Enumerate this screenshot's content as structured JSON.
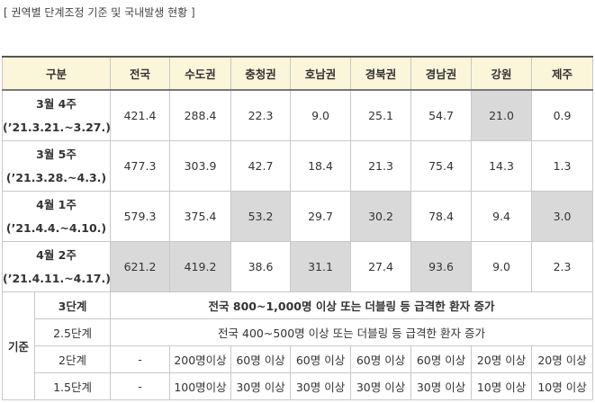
{
  "title": "[ 권역별 단계조정 기준 및 국내발생 현황 ]",
  "table": {
    "header": [
      "구분",
      "전국",
      "수도권",
      "충청권",
      "호남권",
      "경북권",
      "경남권",
      "강원",
      "제주"
    ],
    "rows": [
      {
        "week": "3월 4주",
        "period": "(’21.3.21.~3.27.)",
        "values": [
          "421.4",
          "288.4",
          "22.3",
          "9.0",
          "25.1",
          "54.7",
          "21.0",
          "0.9"
        ]
      },
      {
        "week": "3월 5주",
        "period": "(’21.3.28.~4.3.)",
        "values": [
          "477.3",
          "303.9",
          "42.7",
          "18.4",
          "21.3",
          "75.4",
          "14.3",
          "1.3"
        ]
      },
      {
        "week": "4월 1주",
        "period": "(’21.4.4.~4.10.)",
        "values": [
          "579.3",
          "375.4",
          "53.2",
          "29.7",
          "30.2",
          "78.4",
          "9.4",
          "3.0"
        ]
      },
      {
        "week": "4월 2주",
        "period": "(’21.4.11.~4.17.)",
        "values": [
          "621.2",
          "419.2",
          "38.6",
          "31.1",
          "27.4",
          "93.6",
          "9.0",
          "2.3"
        ]
      }
    ],
    "criteria": {
      "label": "기준",
      "rows": [
        {
          "level": "3단계",
          "text": "전국 800~1,000명 이상 또는 더블링 등 급격한 환자 증가"
        },
        {
          "level": "2.5단계",
          "text": "전국 400~500명 이상 또는 더블링 등 급격한 환자 증가"
        },
        {
          "level": "2단계",
          "values": [
            "-",
            "200명이상",
            "60명 이상",
            "60명 이상",
            "60명 이상",
            "60명 이상",
            "20명 이상",
            "20명 이상"
          ]
        },
        {
          "level": "1.5단계",
          "values": [
            "-",
            "100명이상",
            "30명 이상",
            "30명 이상",
            "30명 이상",
            "30명 이상",
            "10명 이상",
            "10명 이상"
          ]
        }
      ]
    }
  }
}
